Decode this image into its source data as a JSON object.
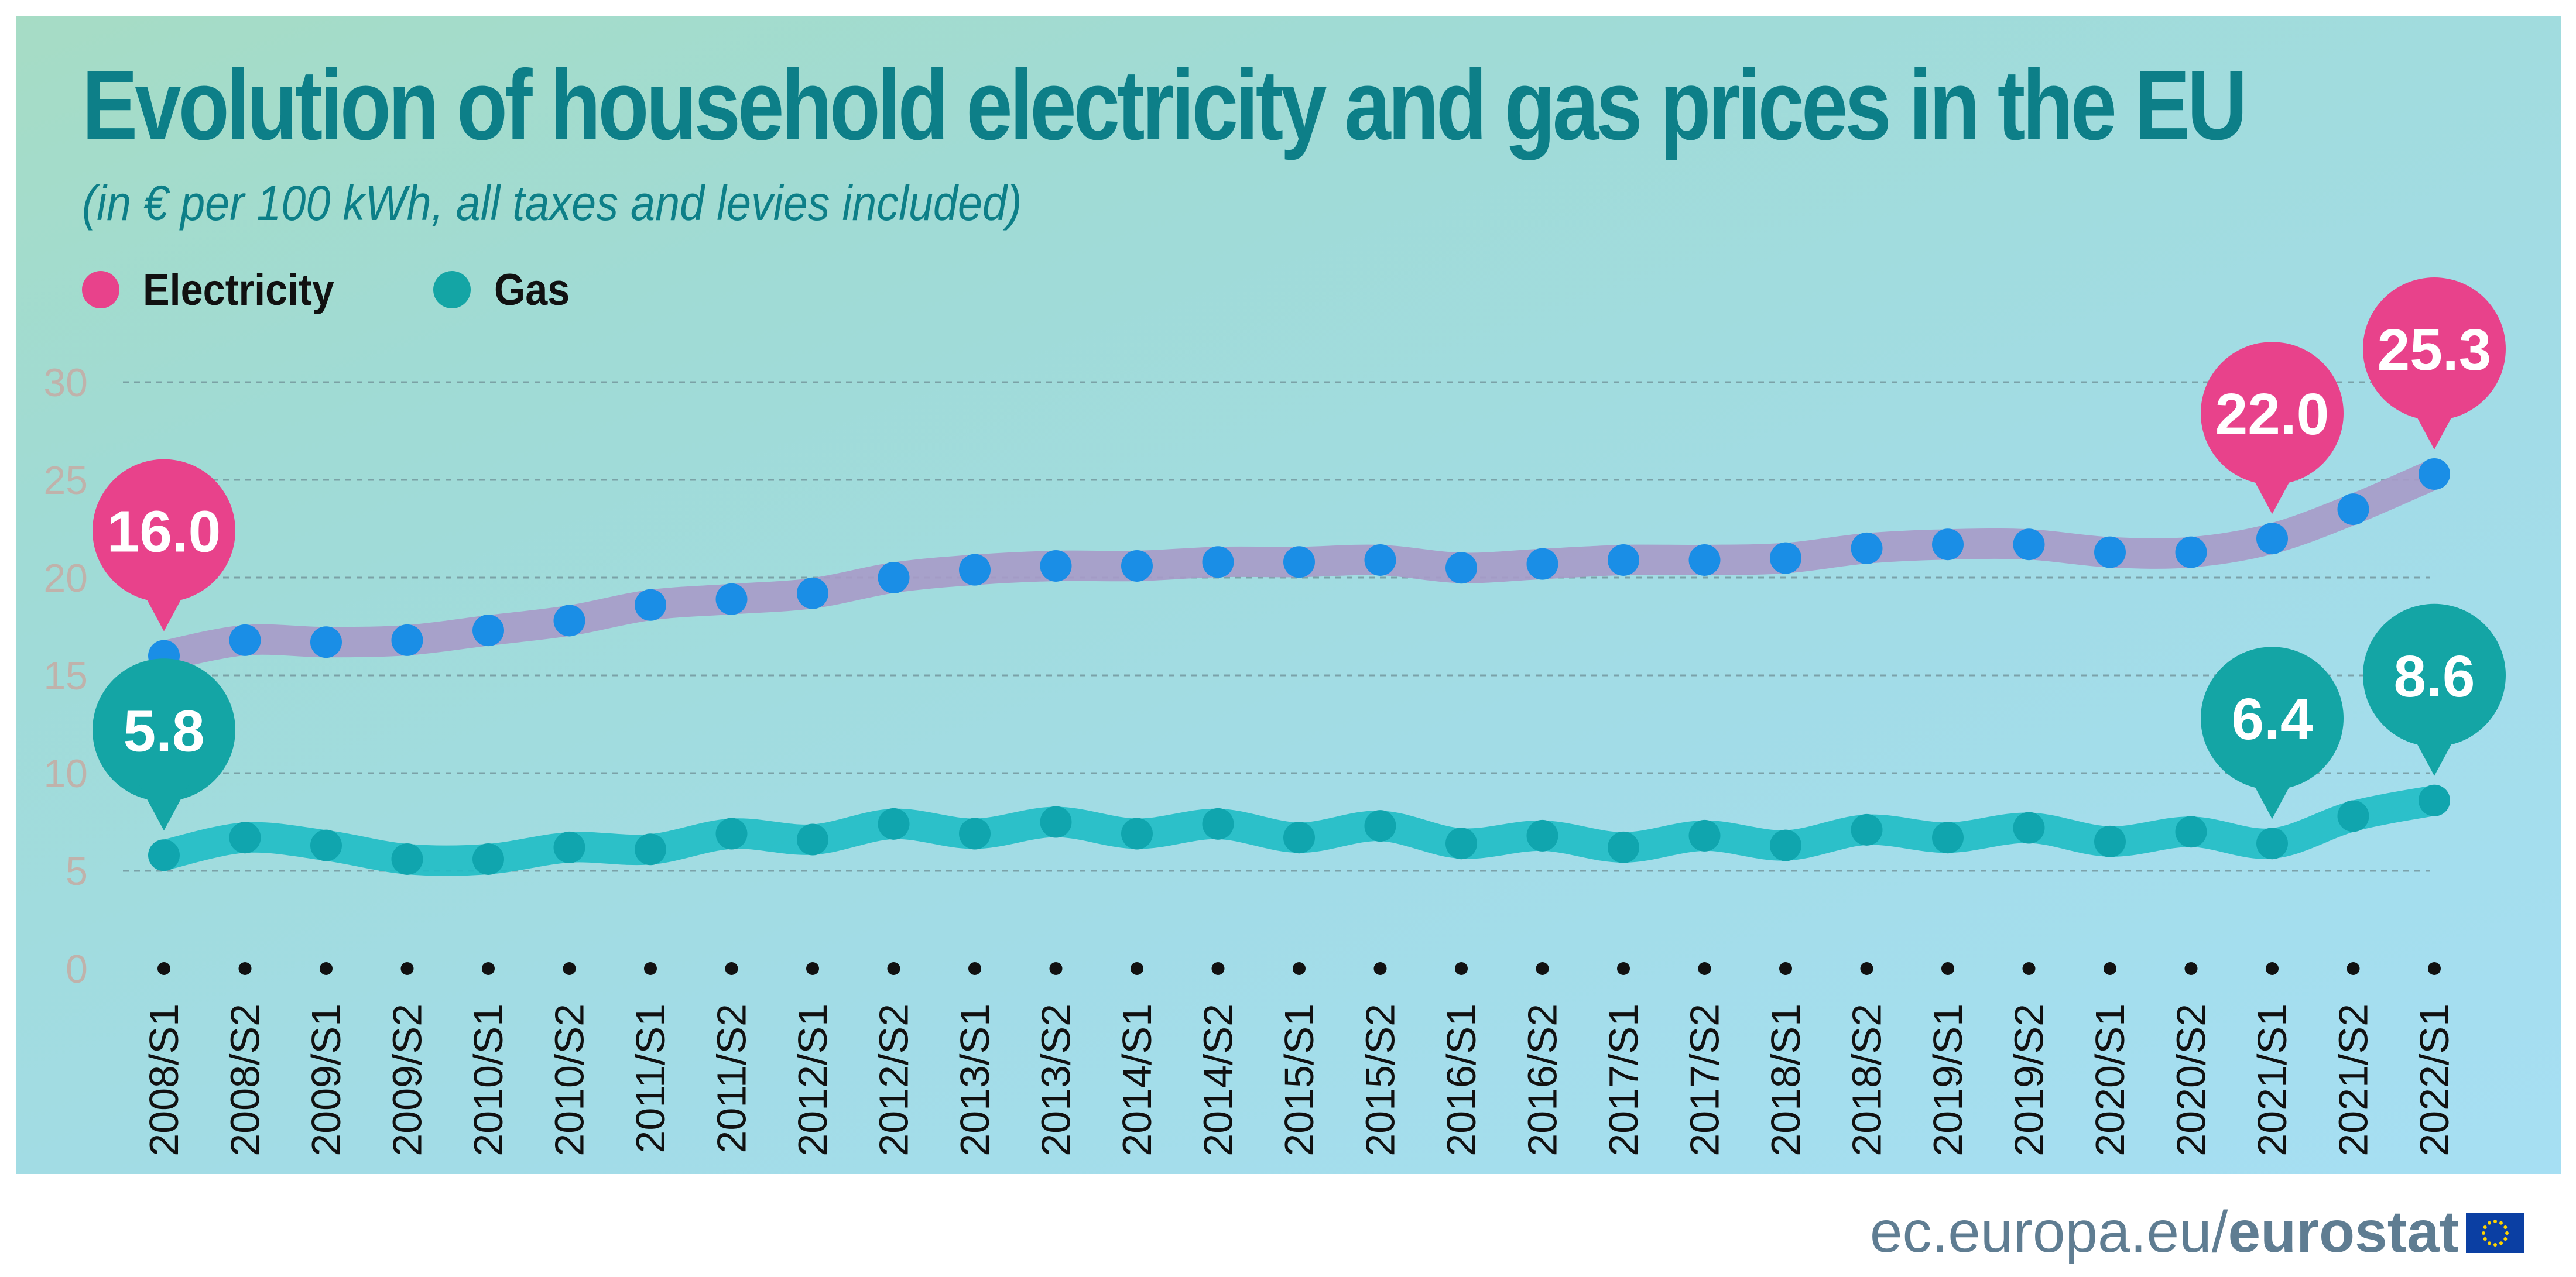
{
  "header": {
    "title": "Evolution of household electricity and gas prices in the EU",
    "subtitle": "(in € per 100 kWh, all taxes and levies included)"
  },
  "footer": {
    "domain": "ec.europa.eu/",
    "brand": "eurostat"
  },
  "colors": {
    "electricity_label": "#e8428b",
    "electricity_line": "#a79ac8",
    "electricity_dot": "#1a8ee6",
    "gas_line": "#1fbcc5",
    "gas_dot": "#10a5ae",
    "gas_label": "#14a5a5",
    "axis_text": "#c0b2ab",
    "grid": "#6f8f96"
  },
  "chart_data": {
    "type": "line",
    "title": "Evolution of household electricity and gas prices in the EU",
    "subtitle": "(in € per 100 kWh, all taxes and levies included)",
    "ylim": [
      0,
      30
    ],
    "yticks": [
      0,
      5,
      10,
      15,
      20,
      25,
      30
    ],
    "grid": true,
    "legend_position": "top-left",
    "categories": [
      "2008/S1",
      "2008/S2",
      "2009/S1",
      "2009/S2",
      "2010/S1",
      "2010/S2",
      "2011/S1",
      "2011/S2",
      "2012/S1",
      "2012/S2",
      "2013/S1",
      "2013/S2",
      "2014/S1",
      "2014/S2",
      "2015/S1",
      "2015/S2",
      "2016/S1",
      "2016/S2",
      "2017/S1",
      "2017/S2",
      "2018/S1",
      "2018/S2",
      "2019/S1",
      "2019/S2",
      "2020/S1",
      "2020/S2",
      "2021/S1",
      "2021/S2",
      "2022/S1"
    ],
    "series": [
      {
        "name": "Electricity",
        "values": [
          16.0,
          16.8,
          16.7,
          16.8,
          17.3,
          17.8,
          18.6,
          18.9,
          19.2,
          20.0,
          20.4,
          20.6,
          20.6,
          20.8,
          20.8,
          20.9,
          20.5,
          20.7,
          20.9,
          20.9,
          21.0,
          21.5,
          21.7,
          21.7,
          21.3,
          21.3,
          22.0,
          23.5,
          25.3
        ],
        "callouts": [
          {
            "index": 0,
            "label": "16.0"
          },
          {
            "index": 26,
            "label": "22.0"
          },
          {
            "index": 28,
            "label": "25.3"
          }
        ]
      },
      {
        "name": "Gas",
        "values": [
          5.8,
          6.7,
          6.3,
          5.6,
          5.6,
          6.2,
          6.1,
          6.9,
          6.6,
          7.4,
          6.9,
          7.5,
          6.9,
          7.4,
          6.7,
          7.3,
          6.4,
          6.8,
          6.2,
          6.8,
          6.3,
          7.1,
          6.7,
          7.2,
          6.5,
          7.0,
          6.4,
          7.8,
          8.6
        ],
        "callouts": [
          {
            "index": 0,
            "label": "5.8"
          },
          {
            "index": 26,
            "label": "6.4"
          },
          {
            "index": 28,
            "label": "8.6"
          }
        ]
      }
    ]
  }
}
